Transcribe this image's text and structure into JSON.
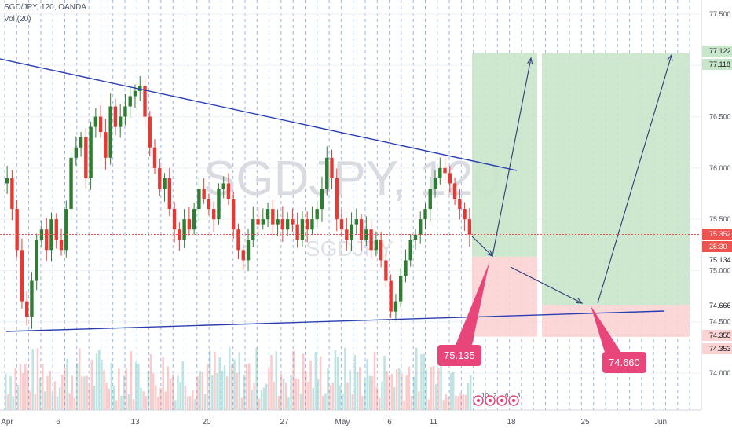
{
  "header": {
    "symbol_line": "SGD/JPY, 120, OANDA",
    "indicator": "Vol (20)"
  },
  "watermark": {
    "main": "SGDJPY, 120",
    "sub": "SGDJPY"
  },
  "colors": {
    "up": "#26a69a",
    "down": "#ef5350",
    "bull": "#2e7d32",
    "bear": "#e53935",
    "trendline": "#2a3eb1",
    "profit_zone": "#c8e6c9",
    "loss_zone": "#fbd3d3",
    "callout": "#e8457a",
    "grid": "#4a7ad8"
  },
  "chart_data": {
    "type": "candlestick",
    "symbol": "SGD/JPY",
    "timeframe": "120",
    "x_ticks": [
      "Apr",
      "6",
      "13",
      "20",
      "27",
      "May",
      "6",
      "11",
      "18",
      "25",
      "Jun"
    ],
    "y_ticks": [
      "77.500",
      "77.000",
      "76.500",
      "76.000",
      "75.500",
      "75.000",
      "74.500",
      "74.000"
    ],
    "price_labels": [
      {
        "value": "77.122",
        "style": "green"
      },
      {
        "value": "77.118",
        "style": "green"
      },
      {
        "value": "75.352",
        "style": "current"
      },
      {
        "value": "25:30",
        "style": "timer"
      },
      {
        "value": "75.134",
        "style": "plain"
      },
      {
        "value": "74.666",
        "style": "plain"
      },
      {
        "value": "74.355",
        "style": "red"
      },
      {
        "value": "74.353",
        "style": "red"
      }
    ],
    "current_price": 75.352,
    "candles_close": [
      75.9,
      75.6,
      75.2,
      74.7,
      74.55,
      74.9,
      75.3,
      75.4,
      75.2,
      75.5,
      75.3,
      75.2,
      75.6,
      76.1,
      76.2,
      76.3,
      75.9,
      76.4,
      76.5,
      76.35,
      76.1,
      76.6,
      76.4,
      76.5,
      76.6,
      76.7,
      76.75,
      76.8,
      76.5,
      76.2,
      76.0,
      75.8,
      75.9,
      75.6,
      75.4,
      75.3,
      75.5,
      75.4,
      75.6,
      75.8,
      75.7,
      75.6,
      75.5,
      75.8,
      75.85,
      75.7,
      75.4,
      75.2,
      75.1,
      75.3,
      75.5,
      75.45,
      75.5,
      75.6,
      75.45,
      75.5,
      75.4,
      75.5,
      75.45,
      75.3,
      75.5,
      75.4,
      75.5,
      75.6,
      75.8,
      76.1,
      75.9,
      75.5,
      75.4,
      75.3,
      75.45,
      75.5,
      75.3,
      75.4,
      75.2,
      75.3,
      75.1,
      74.9,
      74.6,
      74.7,
      74.95,
      75.1,
      75.3,
      75.35,
      75.5,
      75.6,
      75.8,
      75.9,
      76.0,
      75.95,
      75.85,
      75.7,
      75.6,
      75.5,
      75.35
    ],
    "trendlines": [
      {
        "from": [
          "start",
          76.95
        ],
        "to": [
          "May 15",
          75.98
        ]
      },
      {
        "from": [
          "start",
          74.39
        ],
        "to": [
          "Jun",
          74.6
        ]
      }
    ],
    "positions": [
      {
        "entry": 75.134,
        "target": 77.122,
        "stop": 74.355
      },
      {
        "entry": 74.666,
        "target": 77.118,
        "stop": 74.353
      }
    ],
    "annotations": [
      "75.135",
      "74.660"
    ],
    "bottom_badges": [
      "10",
      "2",
      "6",
      "3"
    ]
  }
}
